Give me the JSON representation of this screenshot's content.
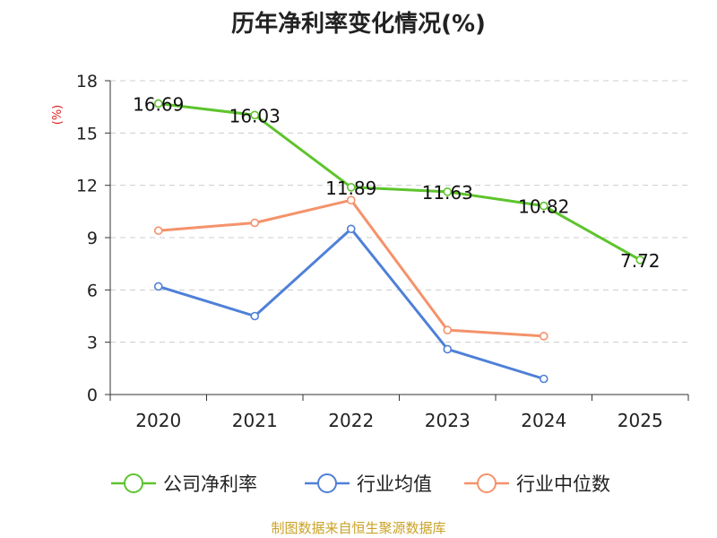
{
  "chart_data": {
    "type": "line",
    "title": "历年净利率变化情况(%)",
    "ylabel": "(%)",
    "categories": [
      "2020",
      "2021",
      "2022",
      "2023",
      "2024",
      "2025"
    ],
    "ylim": [
      0,
      18
    ],
    "yticks": [
      "0",
      "3",
      "6",
      "9",
      "12",
      "15",
      "18"
    ],
    "grid": true,
    "legend_position": "bottom",
    "series": [
      {
        "name": "公司净利率",
        "color": "#5ec42d",
        "values": [
          16.69,
          16.03,
          11.89,
          11.63,
          10.82,
          7.72
        ],
        "labels": [
          "16.69",
          "16.03",
          "11.89",
          "11.63",
          "10.82",
          "7.72"
        ]
      },
      {
        "name": "行业均值",
        "color": "#4f80d8",
        "values": [
          6.2,
          4.5,
          9.5,
          2.6,
          0.9,
          null
        ]
      },
      {
        "name": "行业中位数",
        "color": "#f4926a",
        "values": [
          9.4,
          9.85,
          11.15,
          3.7,
          3.35,
          null
        ]
      }
    ]
  },
  "source_note": "制图数据来自恒生聚源数据库"
}
